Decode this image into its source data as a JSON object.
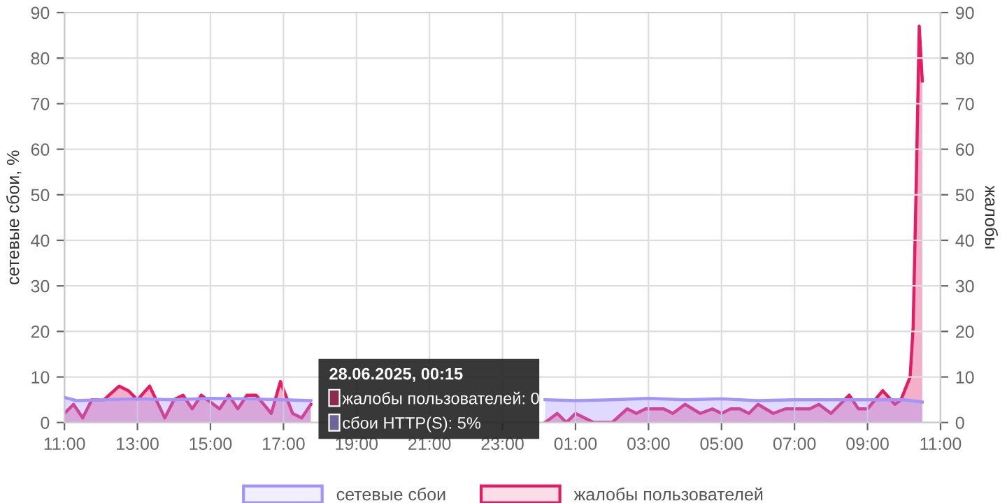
{
  "chart_data": {
    "type": "area",
    "ylabel": "сетевые сбои, %",
    "y2label": "жалобы",
    "xlim": [
      "2025-06-27T11:00",
      "2025-06-28T11:00"
    ],
    "xticks": [
      {
        "value": "2025-06-27T11:00",
        "label": "11:00"
      },
      {
        "value": "2025-06-27T13:00",
        "label": "13:00"
      },
      {
        "value": "2025-06-27T15:00",
        "label": "15:00"
      },
      {
        "value": "2025-06-27T17:00",
        "label": "17:00"
      },
      {
        "value": "2025-06-27T19:00",
        "label": "19:00"
      },
      {
        "value": "2025-06-27T21:00",
        "label": "21:00"
      },
      {
        "value": "2025-06-27T23:00",
        "label": "23:00"
      },
      {
        "value": "2025-06-28T01:00",
        "label": "01:00"
      },
      {
        "value": "2025-06-28T03:00",
        "label": "03:00"
      },
      {
        "value": "2025-06-28T05:00",
        "label": "05:00"
      },
      {
        "value": "2025-06-28T07:00",
        "label": "07:00"
      },
      {
        "value": "2025-06-28T09:00",
        "label": "09:00"
      },
      {
        "value": "2025-06-28T11:00",
        "label": "11:00"
      }
    ],
    "ylim": [
      0,
      90
    ],
    "yticks": [
      0,
      10,
      20,
      30,
      40,
      50,
      60,
      70,
      80,
      90
    ],
    "y2lim": [
      0,
      90
    ],
    "y2ticks": [
      0,
      10,
      20,
      30,
      40,
      50,
      60,
      70,
      80,
      90
    ],
    "grid": true,
    "legend": "bottom",
    "marker": "none",
    "line_style": "solid",
    "annotations": [
      "28.06.2025, 00:15",
      "жалобы пользователей: 0",
      "сбои HTTP(S): 5%"
    ],
    "series": [
      {
        "name": "сетевые сбои",
        "color": "#a394fb",
        "axis": "y",
        "x": [
          "2025-06-27T11:00",
          "2025-06-27T11:20",
          "2025-06-27T12:00",
          "2025-06-27T13:00",
          "2025-06-27T14:00",
          "2025-06-27T15:00",
          "2025-06-27T16:00",
          "2025-06-27T17:00",
          "2025-06-27T17:45",
          "2025-06-27T21:00",
          "2025-06-28T00:10",
          "2025-06-28T01:00",
          "2025-06-28T02:00",
          "2025-06-28T03:00",
          "2025-06-28T04:00",
          "2025-06-28T05:00",
          "2025-06-28T06:00",
          "2025-06-28T07:00",
          "2025-06-28T08:00",
          "2025-06-28T09:00",
          "2025-06-28T10:00",
          "2025-06-28T10:30"
        ],
        "values": [
          5.5,
          4.8,
          5,
          5.2,
          5,
          5.3,
          5.2,
          5,
          4.8,
          null,
          5,
          4.8,
          5,
          5.3,
          5,
          5.2,
          4.8,
          5,
          5,
          5,
          5,
          4.5
        ]
      },
      {
        "name": "жалобы пользователей",
        "color": "#e31c63",
        "axis": "y2",
        "x": [
          "2025-06-27T11:00",
          "2025-06-27T11:15",
          "2025-06-27T11:30",
          "2025-06-27T11:45",
          "2025-06-27T12:05",
          "2025-06-27T12:30",
          "2025-06-27T12:45",
          "2025-06-27T13:00",
          "2025-06-27T13:20",
          "2025-06-27T13:45",
          "2025-06-27T14:00",
          "2025-06-27T14:15",
          "2025-06-27T14:30",
          "2025-06-27T14:45",
          "2025-06-27T15:05",
          "2025-06-27T15:15",
          "2025-06-27T15:30",
          "2025-06-27T15:45",
          "2025-06-27T16:00",
          "2025-06-27T16:15",
          "2025-06-27T16:40",
          "2025-06-27T16:55",
          "2025-06-27T17:15",
          "2025-06-27T17:30",
          "2025-06-27T17:45",
          "2025-06-27T21:00",
          "2025-06-28T00:10",
          "2025-06-28T00:30",
          "2025-06-28T00:45",
          "2025-06-28T01:00",
          "2025-06-28T01:30",
          "2025-06-28T02:00",
          "2025-06-28T02:25",
          "2025-06-28T02:40",
          "2025-06-28T02:55",
          "2025-06-28T03:25",
          "2025-06-28T03:40",
          "2025-06-28T04:00",
          "2025-06-28T04:25",
          "2025-06-28T04:45",
          "2025-06-28T05:00",
          "2025-06-28T05:15",
          "2025-06-28T05:30",
          "2025-06-28T05:45",
          "2025-06-28T06:00",
          "2025-06-28T06:25",
          "2025-06-28T06:45",
          "2025-06-28T07:25",
          "2025-06-28T07:40",
          "2025-06-28T08:00",
          "2025-06-28T08:30",
          "2025-06-28T08:45",
          "2025-06-28T09:00",
          "2025-06-28T09:25",
          "2025-06-28T09:45",
          "2025-06-28T09:55",
          "2025-06-28T10:10",
          "2025-06-28T10:15",
          "2025-06-28T10:20",
          "2025-06-28T10:25",
          "2025-06-28T10:30"
        ],
        "values": [
          2,
          4,
          1,
          5,
          5,
          8,
          7,
          5,
          8,
          1,
          5,
          6,
          3,
          6,
          4,
          3,
          6,
          3,
          6,
          6,
          2,
          9,
          2,
          1,
          4,
          null,
          0,
          2,
          0,
          2,
          0,
          0,
          3,
          2,
          3,
          3,
          2,
          4,
          2,
          3,
          2,
          3,
          3,
          2,
          4,
          2,
          3,
          3,
          4,
          2,
          6,
          3,
          3,
          7,
          4,
          5,
          10,
          21,
          52,
          87,
          75
        ]
      }
    ]
  }
}
